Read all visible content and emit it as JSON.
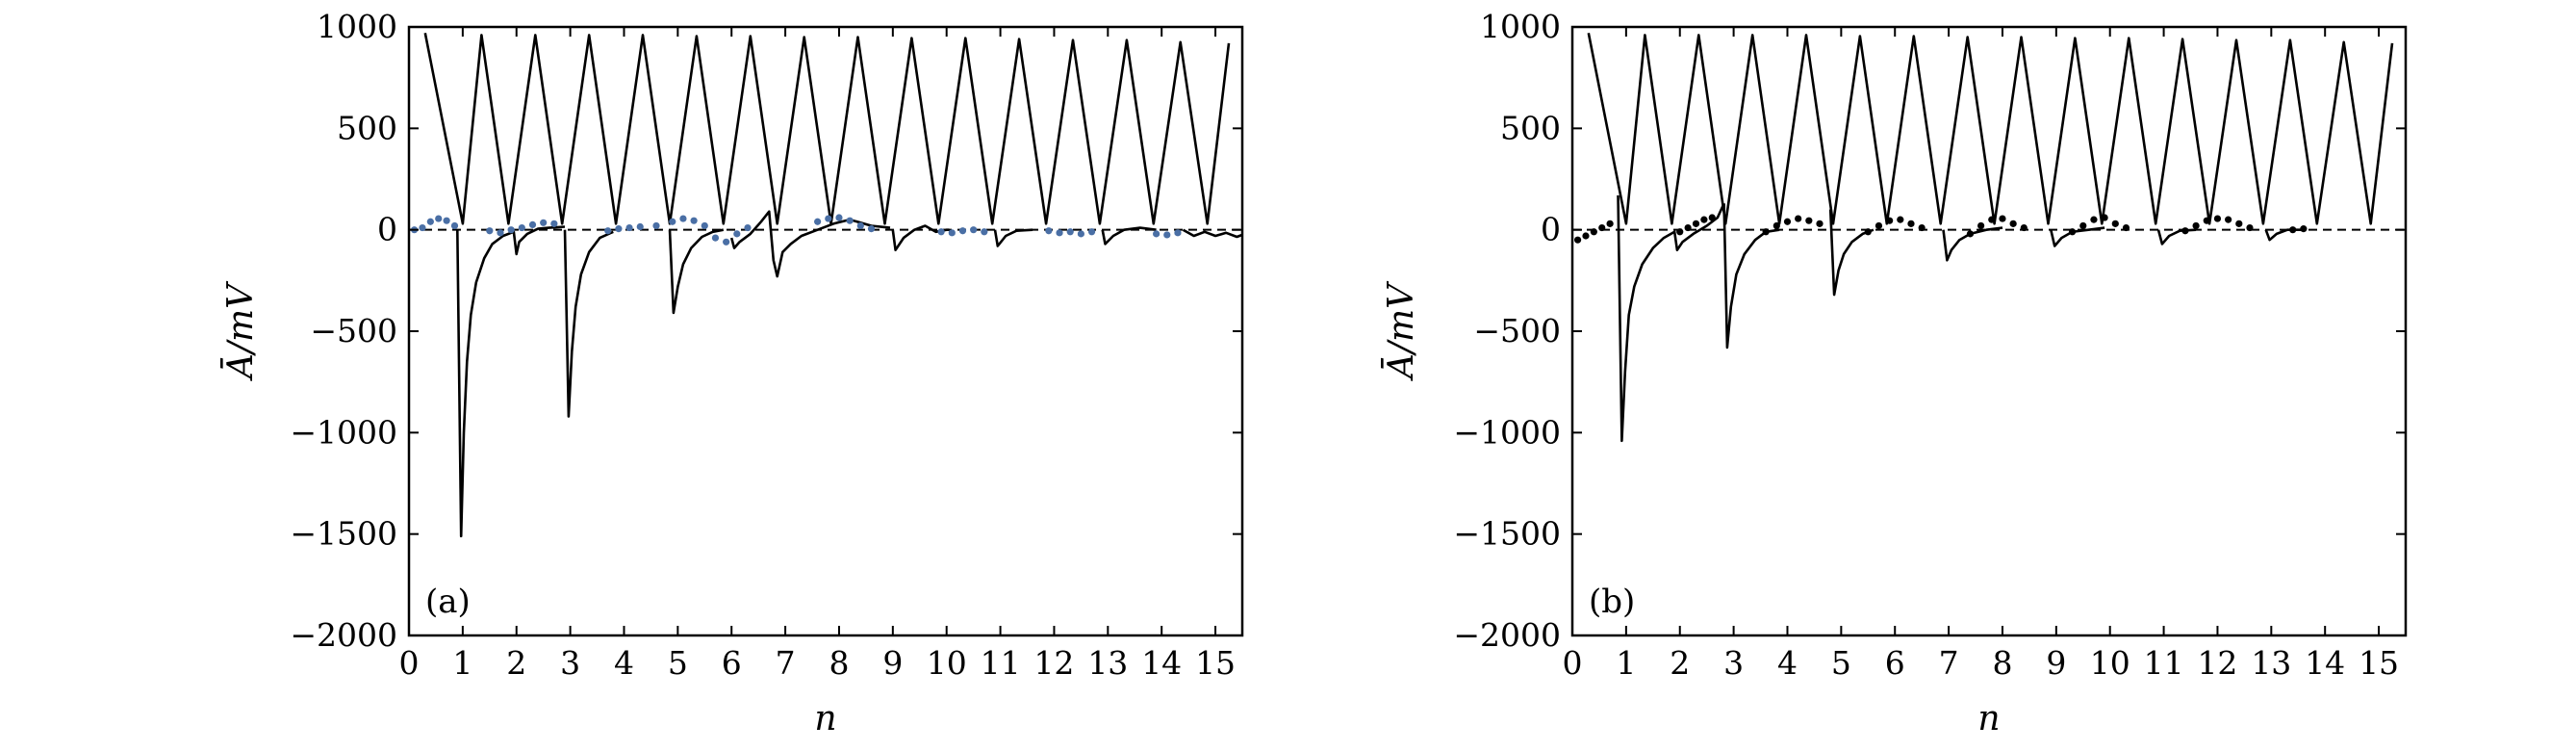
{
  "figure": {
    "panel_a_label": "(a)",
    "panel_b_label": "(b)",
    "colors": {
      "frame": "#000000",
      "main_line": "#000000",
      "dots_a": "#4a6fa5",
      "dots_b": "#000000",
      "zero_line": "#000000"
    }
  },
  "chart_data": [
    {
      "type": "line",
      "panel": "(a)",
      "title": "",
      "xlabel": "n",
      "ylabel": "Ā/mV",
      "xlim": [
        0,
        15.5
      ],
      "ylim": [
        -2000,
        1000
      ],
      "xticks": [
        "0",
        "1",
        "2",
        "3",
        "4",
        "5",
        "6",
        "7",
        "8",
        "9",
        "10",
        "11",
        "12",
        "13",
        "14",
        "15"
      ],
      "yticks": [
        "1000",
        "500",
        "0",
        "−500",
        "−1000",
        "−1500",
        "−2000"
      ],
      "grid": false,
      "reference_line": {
        "y": 0,
        "style": "dashed"
      },
      "series": [
        {
          "style": "solid",
          "x": [
            0.3,
            1.0,
            1.35,
            1.85,
            2.35,
            2.85,
            3.35,
            3.85,
            4.35,
            4.85,
            5.35,
            5.85,
            6.35,
            6.85,
            7.35,
            7.85,
            8.35,
            8.85,
            9.35,
            9.85,
            10.35,
            10.85,
            11.35,
            11.85,
            12.35,
            12.85,
            13.35,
            13.85,
            14.35,
            14.85,
            15.25
          ],
          "y": [
            970,
            30,
            960,
            30,
            960,
            30,
            960,
            30,
            960,
            30,
            955,
            30,
            955,
            30,
            950,
            30,
            950,
            30,
            945,
            30,
            945,
            30,
            940,
            30,
            935,
            30,
            935,
            30,
            925,
            30,
            920
          ]
        },
        {
          "style": "solid",
          "x": [
            0.9,
            0.97,
            1.02,
            1.08,
            1.15,
            1.25,
            1.4,
            1.55,
            1.75,
            1.95,
            2.0,
            2.05,
            2.2,
            2.4,
            2.6,
            2.9
          ],
          "y": [
            0,
            -1510,
            -1000,
            -650,
            -420,
            -260,
            -140,
            -70,
            -30,
            -10,
            -120,
            -60,
            -20,
            5,
            10,
            15
          ]
        },
        {
          "style": "solid",
          "x": [
            2.9,
            2.97,
            3.03,
            3.1,
            3.2,
            3.35,
            3.55,
            3.8
          ],
          "y": [
            0,
            -920,
            -600,
            -380,
            -220,
            -110,
            -40,
            -10
          ]
        },
        {
          "style": "solid",
          "x": [
            4.85,
            4.92,
            5.0,
            5.1,
            5.25,
            5.45,
            5.65,
            5.85
          ],
          "y": [
            0,
            -410,
            -280,
            -170,
            -90,
            -35,
            -10,
            0
          ]
        },
        {
          "style": "solid",
          "x": [
            6.0,
            6.05,
            6.15,
            6.35,
            6.55,
            6.7,
            6.78,
            6.85,
            6.95,
            7.1,
            7.3,
            7.6,
            7.9,
            8.2,
            8.6,
            8.95
          ],
          "y": [
            -40,
            -90,
            -60,
            -20,
            40,
            90,
            -150,
            -230,
            -110,
            -70,
            -30,
            0,
            30,
            50,
            20,
            10
          ]
        },
        {
          "style": "solid",
          "x": [
            9.0,
            9.05,
            9.2,
            9.4,
            9.6,
            9.8,
            10.0,
            10.05
          ],
          "y": [
            0,
            -100,
            -40,
            0,
            20,
            -10,
            0,
            0
          ]
        },
        {
          "style": "solid",
          "x": [
            10.9,
            10.95,
            11.1,
            11.3,
            11.6
          ],
          "y": [
            0,
            -80,
            -30,
            -5,
            0
          ]
        },
        {
          "style": "solid",
          "x": [
            12.9,
            12.95,
            13.1,
            13.3,
            13.6,
            13.9
          ],
          "y": [
            0,
            -70,
            -30,
            0,
            10,
            0
          ]
        },
        {
          "style": "solid",
          "x": [
            14.4,
            14.6,
            14.8,
            15.0,
            15.2,
            15.4,
            15.5
          ],
          "y": [
            0,
            -30,
            -10,
            -30,
            -15,
            -35,
            -25
          ]
        },
        {
          "style": "dotted",
          "x": [
            0.1,
            0.25,
            0.4,
            0.55,
            0.7,
            0.85,
            1.5,
            1.7,
            1.9,
            2.1,
            2.3,
            2.5,
            2.7,
            3.7,
            3.9,
            4.1,
            4.3,
            4.6,
            4.9,
            5.1,
            5.3,
            5.5,
            5.7,
            5.9,
            6.1,
            6.3,
            7.6,
            7.8,
            8.0,
            8.2,
            8.4,
            8.6,
            9.9,
            10.1,
            10.3,
            10.5,
            10.7,
            11.9,
            12.1,
            12.3,
            12.5,
            12.7,
            13.9,
            14.1,
            14.3
          ],
          "y": [
            0,
            10,
            40,
            55,
            45,
            20,
            -5,
            -15,
            0,
            10,
            25,
            35,
            30,
            -5,
            5,
            10,
            15,
            20,
            40,
            55,
            45,
            20,
            -40,
            -60,
            -20,
            10,
            40,
            55,
            60,
            45,
            20,
            5,
            -10,
            -15,
            -5,
            0,
            -10,
            -5,
            -15,
            -10,
            -20,
            -10,
            -20,
            -25,
            -15
          ]
        }
      ]
    },
    {
      "type": "line",
      "panel": "(b)",
      "title": "",
      "xlabel": "n",
      "ylabel": "Ā/mV",
      "xlim": [
        0,
        15.5
      ],
      "ylim": [
        -2000,
        1000
      ],
      "xticks": [
        "0",
        "1",
        "2",
        "3",
        "4",
        "5",
        "6",
        "7",
        "8",
        "9",
        "10",
        "11",
        "12",
        "13",
        "14",
        "15"
      ],
      "yticks": [
        "1000",
        "500",
        "0",
        "−500",
        "−1000",
        "−1500",
        "−2000"
      ],
      "grid": false,
      "reference_line": {
        "y": 0,
        "style": "dashed"
      },
      "series": [
        {
          "style": "solid",
          "x": [
            0.3,
            1.0,
            1.35,
            1.85,
            2.35,
            2.85,
            3.35,
            3.85,
            4.35,
            4.85,
            5.35,
            5.85,
            6.35,
            6.85,
            7.35,
            7.85,
            8.35,
            8.85,
            9.35,
            9.85,
            10.35,
            10.85,
            11.35,
            11.85,
            12.35,
            12.85,
            13.35,
            13.85,
            14.35,
            14.85,
            15.25
          ],
          "y": [
            970,
            30,
            960,
            30,
            960,
            30,
            960,
            30,
            960,
            30,
            955,
            30,
            955,
            30,
            950,
            30,
            950,
            30,
            945,
            30,
            945,
            30,
            940,
            30,
            935,
            30,
            935,
            30,
            925,
            30,
            920
          ]
        },
        {
          "style": "solid",
          "x": [
            0.85,
            0.92,
            0.98,
            1.05,
            1.15,
            1.3,
            1.5,
            1.7,
            1.9,
            1.95,
            2.05,
            2.25,
            2.5,
            2.7,
            2.82
          ],
          "y": [
            170,
            -1040,
            -700,
            -420,
            -280,
            -170,
            -90,
            -40,
            -10,
            -100,
            -60,
            -20,
            20,
            60,
            130
          ]
        },
        {
          "style": "solid",
          "x": [
            2.82,
            2.88,
            2.95,
            3.05,
            3.2,
            3.4,
            3.6,
            3.85
          ],
          "y": [
            130,
            -580,
            -380,
            -220,
            -120,
            -50,
            -10,
            0
          ]
        },
        {
          "style": "solid",
          "x": [
            4.8,
            4.87,
            4.95,
            5.05,
            5.2,
            5.4,
            5.6
          ],
          "y": [
            100,
            -320,
            -200,
            -120,
            -60,
            -20,
            0
          ]
        },
        {
          "style": "solid",
          "x": [
            6.9,
            6.97,
            7.05,
            7.2,
            7.4,
            7.7,
            8.0
          ],
          "y": [
            0,
            -150,
            -100,
            -50,
            -20,
            0,
            10
          ]
        },
        {
          "style": "solid",
          "x": [
            8.9,
            8.97,
            9.1,
            9.3,
            9.6,
            9.9
          ],
          "y": [
            0,
            -80,
            -40,
            -10,
            0,
            10
          ]
        },
        {
          "style": "solid",
          "x": [
            10.9,
            10.97,
            11.1,
            11.3,
            11.6
          ],
          "y": [
            0,
            -70,
            -30,
            -5,
            0
          ]
        },
        {
          "style": "solid",
          "x": [
            12.9,
            12.97,
            13.1,
            13.3,
            13.6
          ],
          "y": [
            0,
            -50,
            -20,
            0,
            0
          ]
        },
        {
          "style": "dotted",
          "x": [
            0.1,
            0.25,
            0.4,
            0.55,
            0.7,
            2.0,
            2.15,
            2.3,
            2.45,
            2.6,
            3.6,
            3.8,
            4.0,
            4.2,
            4.4,
            4.6,
            5.5,
            5.7,
            5.9,
            6.1,
            6.3,
            6.5,
            7.4,
            7.6,
            7.8,
            8.0,
            8.2,
            8.4,
            9.3,
            9.5,
            9.7,
            9.9,
            10.1,
            10.3,
            11.4,
            11.6,
            11.8,
            12.0,
            12.2,
            12.4,
            12.6,
            13.4,
            13.6
          ],
          "y": [
            -50,
            -30,
            -10,
            10,
            30,
            -10,
            10,
            30,
            50,
            60,
            -10,
            20,
            40,
            55,
            45,
            30,
            -10,
            20,
            45,
            50,
            30,
            10,
            -20,
            20,
            50,
            55,
            30,
            10,
            -10,
            20,
            50,
            60,
            30,
            10,
            -5,
            20,
            45,
            55,
            50,
            30,
            10,
            0,
            5
          ]
        }
      ]
    }
  ]
}
